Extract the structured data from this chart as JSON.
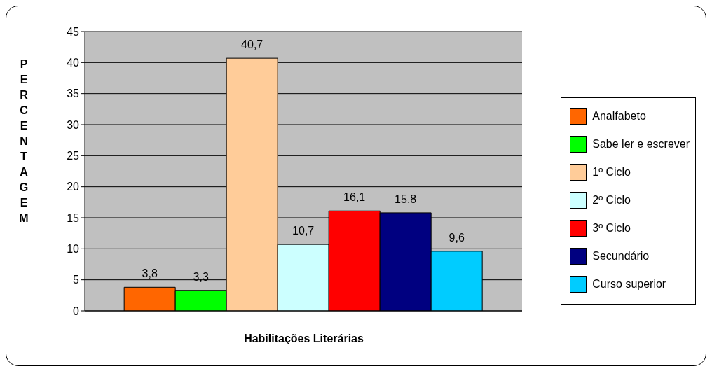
{
  "chart_data": {
    "type": "bar",
    "xlabel": "Habilitações Literárias",
    "ylabel": "PERCENTAGEM",
    "categories": [
      null
    ],
    "series": [
      {
        "name": "Analfabeto",
        "color": "#ff6600",
        "values": [
          3.8
        ],
        "value_labels": [
          "3,8"
        ]
      },
      {
        "name": "Sabe ler e escrever",
        "color": "#00ff00",
        "values": [
          3.3
        ],
        "value_labels": [
          "3,3"
        ]
      },
      {
        "name": "1º Ciclo",
        "color": "#ffcc99",
        "values": [
          40.7
        ],
        "value_labels": [
          "40,7"
        ]
      },
      {
        "name": "2º Ciclo",
        "color": "#ccffff",
        "values": [
          10.7
        ],
        "value_labels": [
          "10,7"
        ]
      },
      {
        "name": "3º Ciclo",
        "color": "#ff0000",
        "values": [
          16.1
        ],
        "value_labels": [
          "16,1"
        ]
      },
      {
        "name": "Secundário",
        "color": "#000080",
        "values": [
          15.8
        ],
        "value_labels": [
          "15,8"
        ]
      },
      {
        "name": "Curso superior",
        "color": "#00ccff",
        "values": [
          9.6
        ],
        "value_labels": [
          "9,6"
        ]
      }
    ],
    "ylim": [
      0,
      45
    ],
    "yticks": [
      0,
      5,
      10,
      15,
      20,
      25,
      30,
      35,
      40,
      45
    ],
    "grid": "y",
    "legend": "right"
  }
}
